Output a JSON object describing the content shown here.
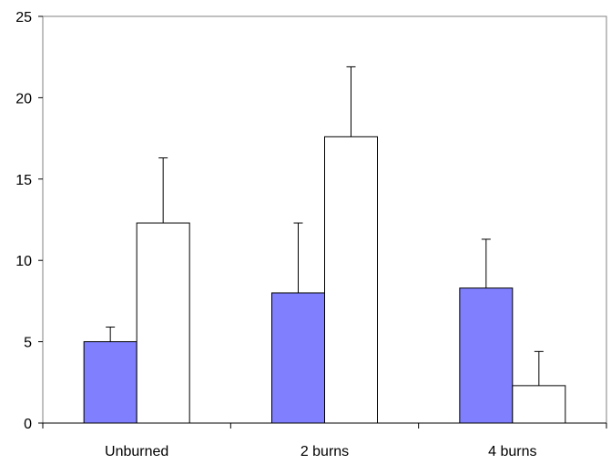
{
  "chart_data": {
    "type": "bar",
    "categories": [
      "Unburned",
      "2 burns",
      "4 burns"
    ],
    "series": [
      {
        "color": "#8080ff",
        "values": [
          5.0,
          8.0,
          8.3
        ],
        "error": [
          0.9,
          4.3,
          3.0
        ]
      },
      {
        "color": "#ffffff",
        "values": [
          12.3,
          17.6,
          2.3
        ],
        "error": [
          4.0,
          4.3,
          2.1
        ]
      }
    ],
    "title": "",
    "xlabel": "",
    "ylabel": "",
    "ylim": [
      0,
      25
    ],
    "yticks": [
      0,
      5,
      10,
      15,
      20,
      25
    ],
    "grid": false,
    "legend": "none"
  }
}
